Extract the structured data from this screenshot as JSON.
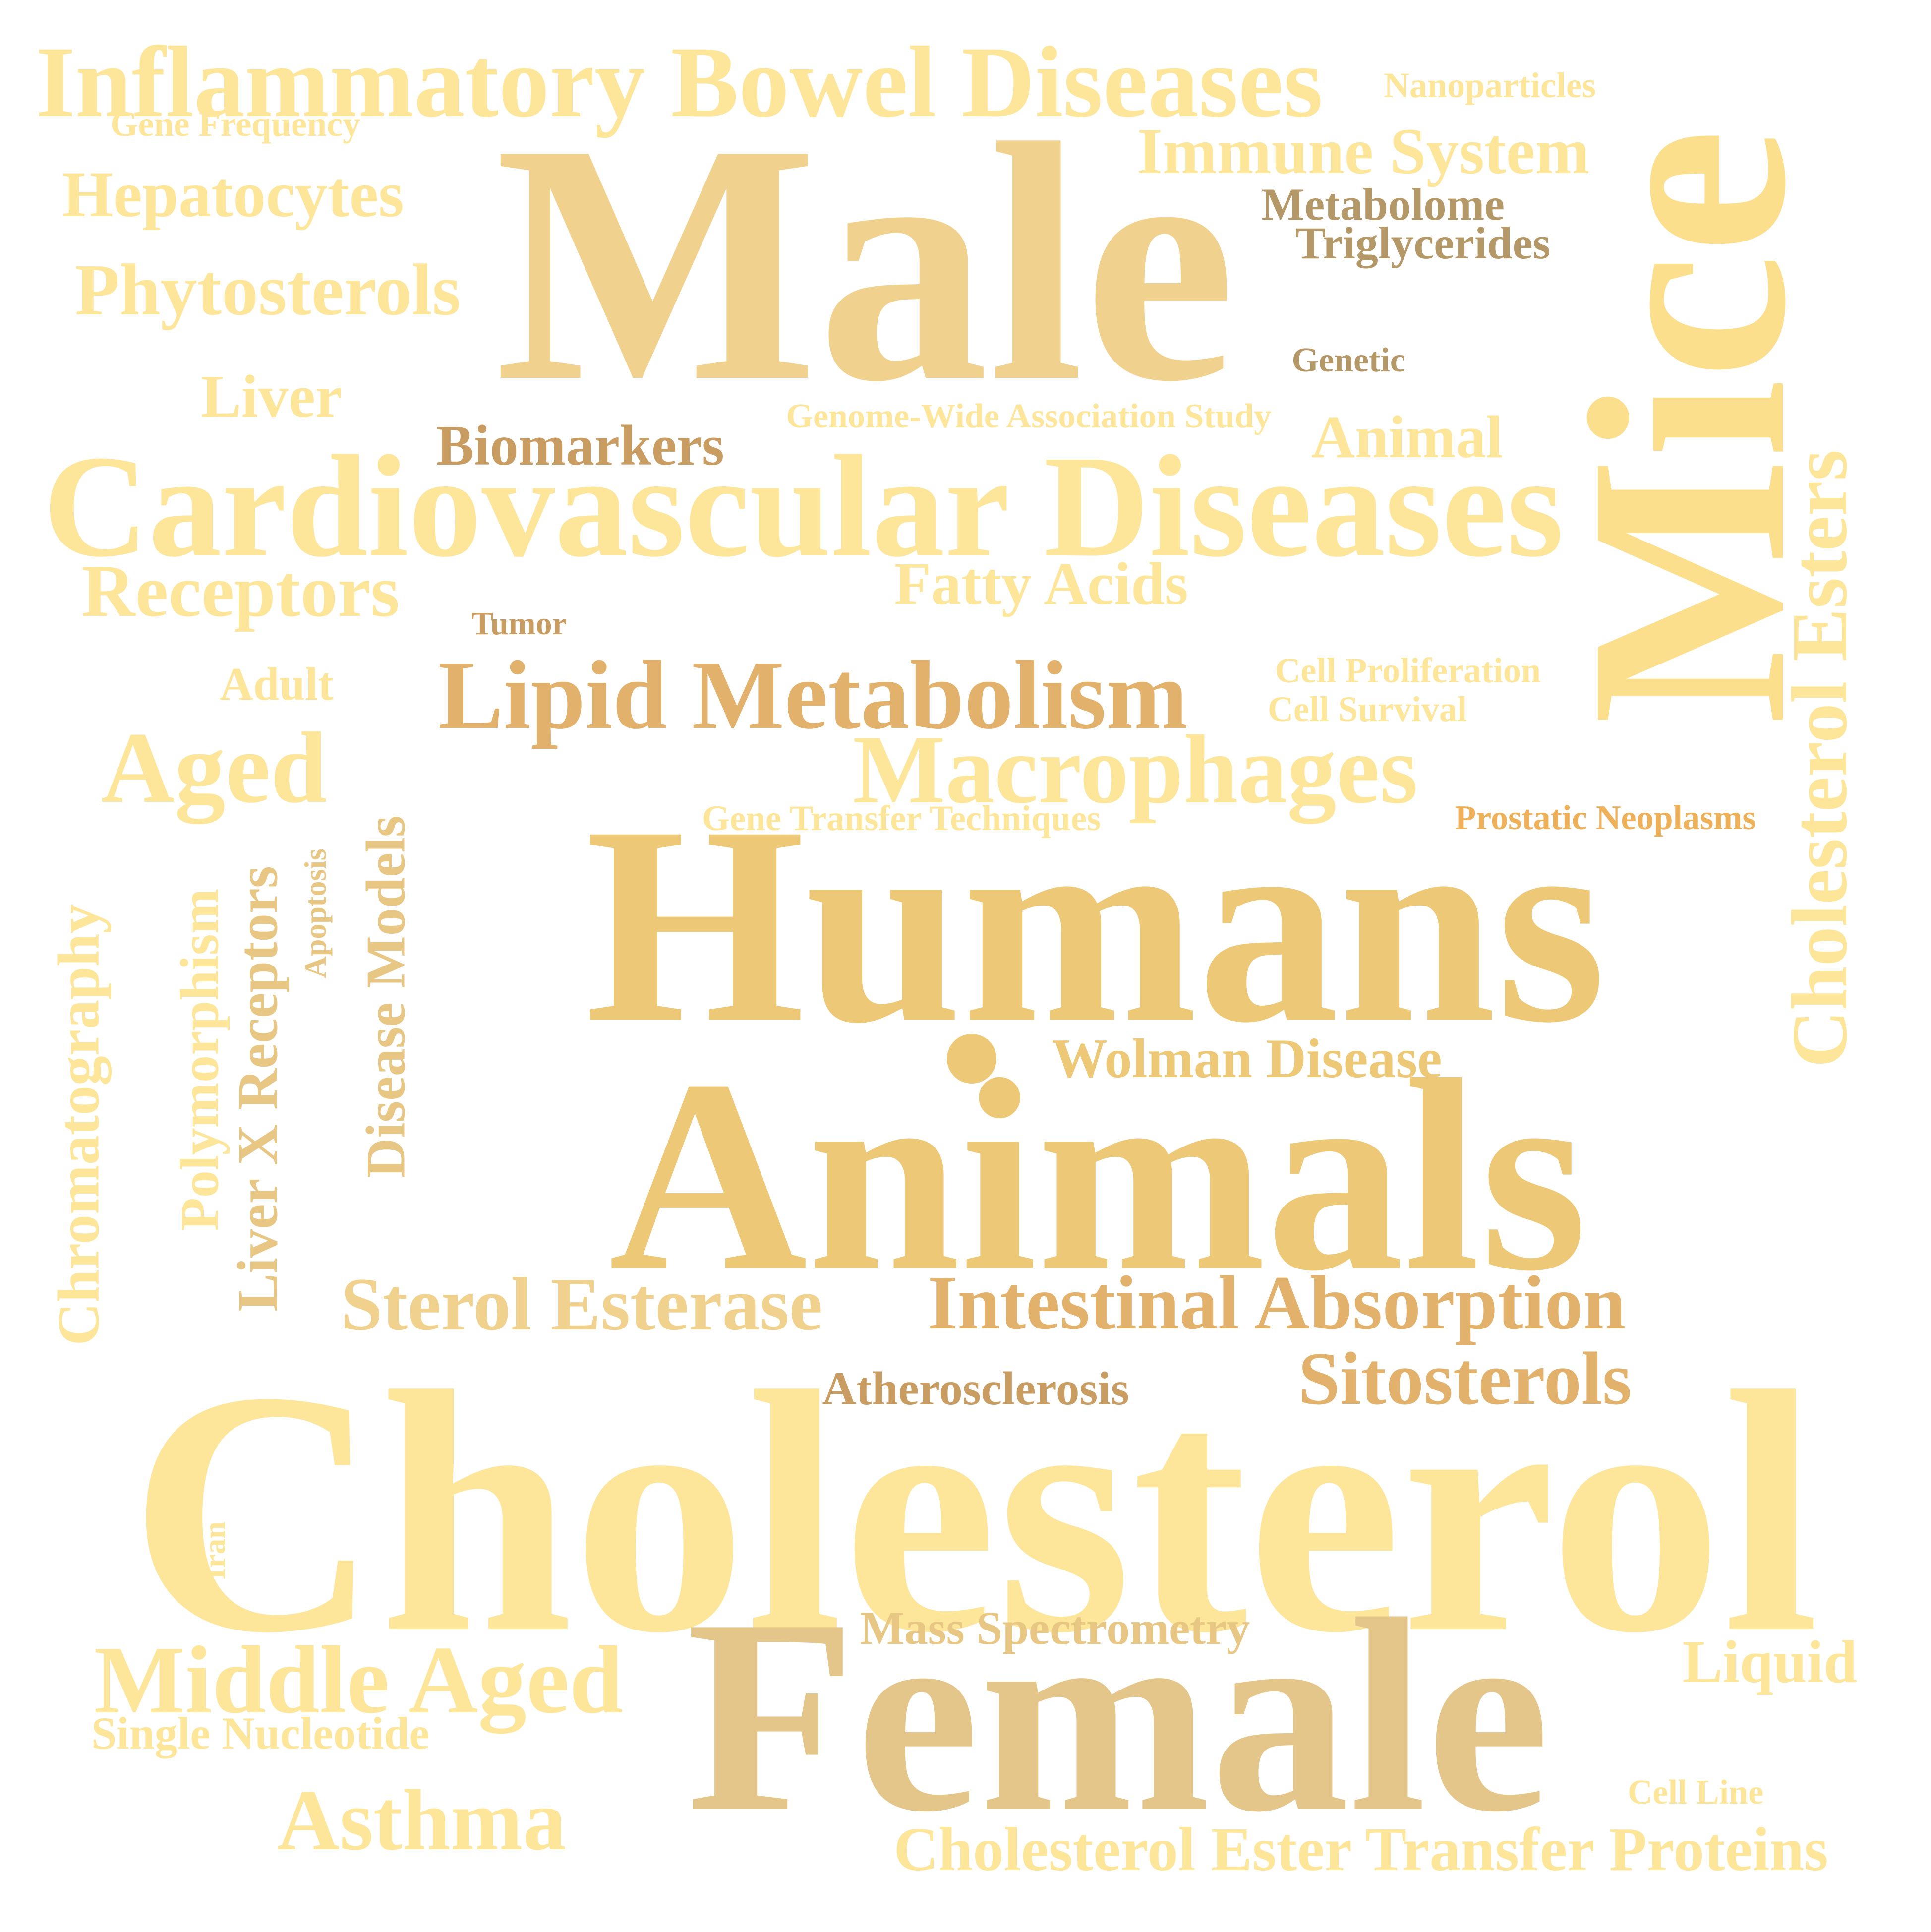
{
  "palette": {
    "pale": "#fde59a",
    "light": "#fcdf8d",
    "sand": "#f0d28e",
    "gold": "#edc876",
    "tan": "#e8c684",
    "khaki": "#e4c68a",
    "ochre": "#e2b26c",
    "brown": "#c99d62",
    "dark": "#b59868",
    "amber": "#eeb058"
  },
  "words": {
    "w_ibd": "Inflammatory Bowel Diseases",
    "w_nano": "Nanoparticles",
    "w_genefreq": "Gene Frequency",
    "w_male": "Male",
    "w_mice": "Mice",
    "w_immune": "Immune System",
    "w_hepato": "Hepatocytes",
    "w_metabolome": "Metabolome",
    "w_trig": "Triglycerides",
    "w_phyto": "Phytosterols",
    "w_genetic": "Genetic",
    "w_liver": "Liver",
    "w_gwas": "Genome-Wide Association Study",
    "w_biomarkers": "Biomarkers",
    "w_animal": "Animal",
    "w_cve": "Cholesterol Esters",
    "w_cvd": "Cardiovascular Diseases",
    "w_receptors": "Receptors",
    "w_fatty": "Fatty Acids",
    "w_tumor": "Tumor",
    "w_cellprolif": "Cell Proliferation",
    "w_adult": "Adult",
    "w_lipid": "Lipid Metabolism",
    "w_cellsurv": "Cell Survival",
    "w_aged": "Aged",
    "w_macro": "Macrophages",
    "w_genetransfer": "Gene Transfer Techniques",
    "w_prostatic": "Prostatic Neoplasms",
    "w_humans": "Humans",
    "w_chrom": "Chromatography",
    "w_polymorph": "Polymorphism",
    "w_lxr": "Liver X Receptors",
    "w_apoptosis": "Apoptosis",
    "w_disease": "Disease Models",
    "w_wolman": "Wolman Disease",
    "w_animals": "Animals",
    "w_sterol": "Sterol Esterase",
    "w_intestinal": "Intestinal Absorption",
    "w_sito": "Sitosterols",
    "w_athero": "Atherosclerosis",
    "w_cholesterol": "Cholesterol",
    "w_iran": "Iran",
    "w_mass": "Mass Spectrometry",
    "w_liquid": "Liquid",
    "w_middle": "Middle Aged",
    "w_female": "Female",
    "w_snp": "Single Nucleotide",
    "w_cellline": "Cell Line",
    "w_asthma": "Asthma",
    "w_cetp": "Cholesterol Ester Transfer Proteins"
  }
}
